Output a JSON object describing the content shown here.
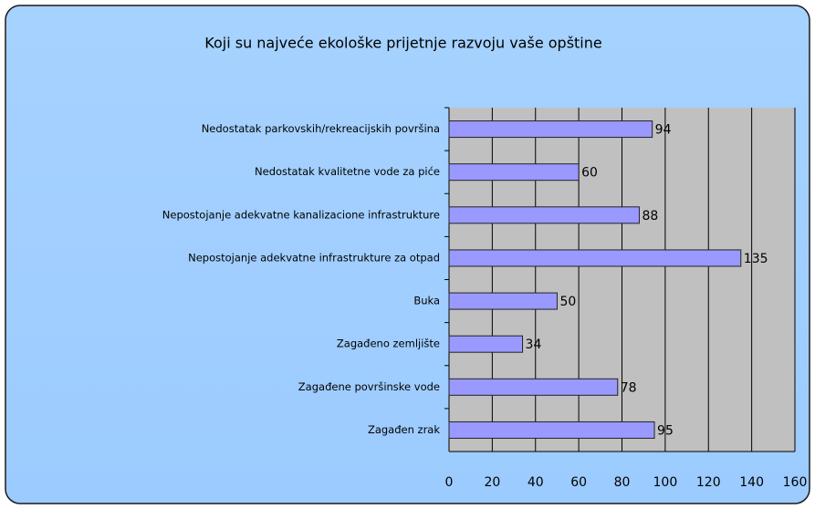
{
  "chart_data": {
    "type": "bar",
    "orientation": "horizontal",
    "title": "Koji su najveće ekološke prijetnje razvoju vaše opštine",
    "categories": [
      "Nedostatak parkovskih/rekreacijskih površina",
      "Nedostatak kvalitetne vode za piće",
      "Nepostojanje adekvatne kanalizacione infrastrukture",
      "Nepostojanje adekvatne infrastrukture za otpad",
      "Buka",
      "Zagađeno zemljište",
      "Zagađene površinske vode",
      "Zagađen zrak"
    ],
    "values": [
      94,
      60,
      88,
      135,
      50,
      34,
      78,
      95
    ],
    "color": "#9999ff",
    "xlim": [
      0,
      160
    ],
    "xticks": [
      0,
      20,
      40,
      60,
      80,
      100,
      120,
      140,
      160
    ],
    "grid": true
  }
}
